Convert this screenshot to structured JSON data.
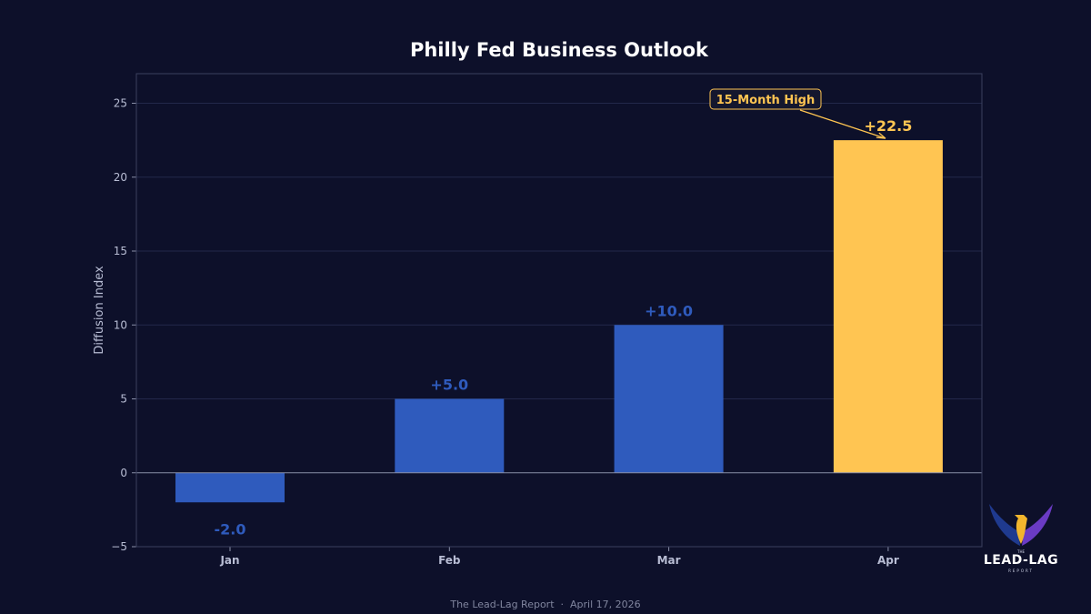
{
  "chart_data": {
    "type": "bar",
    "title": "Philly Fed Business Outlook",
    "xlabel": "",
    "ylabel": "Diffusion Index",
    "categories": [
      "Jan",
      "Feb",
      "Mar",
      "Apr"
    ],
    "values": [
      -2.0,
      5.0,
      10.0,
      22.5
    ],
    "data_labels": [
      "-2.0",
      "+5.0",
      "+10.0",
      "+22.5"
    ],
    "ylim": [
      -5,
      27
    ],
    "yticks": [
      -5,
      0,
      5,
      10,
      15,
      20,
      25
    ],
    "ytick_labels": [
      "−5",
      "0",
      "5",
      "10",
      "15",
      "20",
      "25"
    ],
    "grid": "horizontal",
    "colors": {
      "default": "#2f5bbd",
      "highlight": "#ffc552",
      "background": "#0d102a"
    },
    "highlight_index": 3,
    "annotation": {
      "text": "15-Month High",
      "target_category": "Apr",
      "target_value": 22.5
    }
  },
  "footer": "The Lead-Lag Report  ·  April 17, 2026",
  "logo": {
    "top": "THE",
    "word": "LEAD-LAG",
    "sub": "REPORT"
  }
}
